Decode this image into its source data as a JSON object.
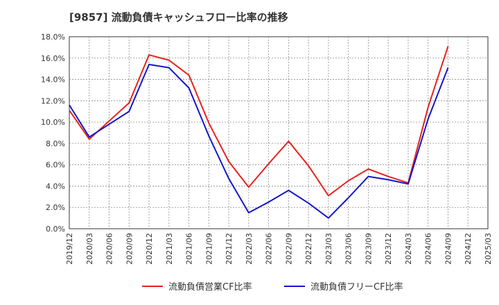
{
  "chart_data": {
    "type": "line",
    "title": "[9857]  流動負債キャッシュフロー比率の推移",
    "xlabel": "",
    "ylabel": "",
    "ylim": [
      0,
      18
    ],
    "y_ticks": [
      "0.0%",
      "2.0%",
      "4.0%",
      "6.0%",
      "8.0%",
      "10.0%",
      "12.0%",
      "14.0%",
      "16.0%",
      "18.0%"
    ],
    "x_ticks": [
      "2019/12",
      "2020/03",
      "2020/06",
      "2020/09",
      "2020/12",
      "2021/03",
      "2021/06",
      "2021/09",
      "2021/12",
      "2022/03",
      "2022/06",
      "2022/09",
      "2022/12",
      "2023/03",
      "2023/06",
      "2023/09",
      "2023/12",
      "2024/03",
      "2024/06",
      "2024/09",
      "2024/12",
      "2025/03"
    ],
    "grid": true,
    "legend_position": "bottom",
    "series": [
      {
        "name": "流動負債営業CF比率",
        "color": "#e8211c",
        "x": [
          "2019/12",
          "2020/03",
          "2020/06",
          "2020/09",
          "2020/12",
          "2021/03",
          "2021/06",
          "2021/09",
          "2021/12",
          "2022/03",
          "2022/06",
          "2022/09",
          "2022/12",
          "2023/03",
          "2023/06",
          "2023/09",
          "2023/12",
          "2024/03",
          "2024/06",
          "2024/09"
        ],
        "values": [
          11.1,
          8.4,
          10.1,
          11.8,
          16.3,
          15.8,
          14.4,
          9.9,
          6.3,
          3.9,
          6.1,
          8.2,
          5.9,
          3.1,
          4.5,
          5.6,
          4.9,
          4.3,
          11.4,
          17.1
        ]
      },
      {
        "name": "流動負債フリーCF比率",
        "color": "#1515cc",
        "x": [
          "2019/12",
          "2020/03",
          "2020/06",
          "2020/09",
          "2020/12",
          "2021/03",
          "2021/06",
          "2021/09",
          "2021/12",
          "2022/03",
          "2022/06",
          "2022/09",
          "2022/12",
          "2023/03",
          "2023/06",
          "2023/09",
          "2023/12",
          "2024/03",
          "2024/06",
          "2024/09"
        ],
        "values": [
          11.6,
          8.6,
          9.8,
          11.0,
          15.4,
          15.1,
          13.2,
          8.7,
          4.7,
          1.5,
          2.5,
          3.6,
          2.4,
          1.0,
          2.9,
          4.9,
          4.6,
          4.2,
          10.3,
          15.1
        ]
      }
    ]
  }
}
